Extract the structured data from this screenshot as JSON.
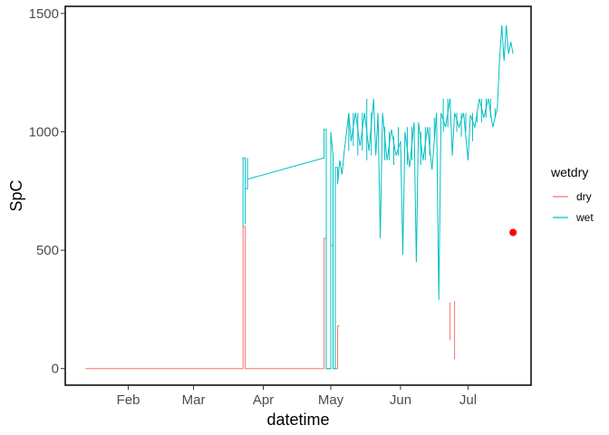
{
  "chart_data": {
    "type": "line",
    "title": "",
    "xlabel": "datetime",
    "ylabel": "SpC",
    "x_ticks": [
      "Feb",
      "Mar",
      "Apr",
      "May",
      "Jun",
      "Jul"
    ],
    "x_tick_dates": [
      "2020-02-01",
      "2020-03-01",
      "2020-04-01",
      "2020-05-01",
      "2020-06-01",
      "2020-07-01"
    ],
    "x_range": [
      "2020-01-04",
      "2020-07-29"
    ],
    "y_ticks": [
      "0",
      "500",
      "1000",
      "1500"
    ],
    "y_tick_values": [
      0,
      500,
      1000,
      1500
    ],
    "ylim": [
      -70,
      1530
    ],
    "grid": false,
    "legend": {
      "title": "wetdry",
      "position": "right",
      "entries": [
        {
          "label": "dry",
          "color": "#F8766D"
        },
        {
          "label": "wet",
          "color": "#00BFC4"
        }
      ]
    },
    "series": [
      {
        "name": "dry",
        "color": "#F8766D",
        "points": [
          [
            "2020-01-13",
            0
          ],
          [
            "2020-02-15",
            0
          ],
          [
            "2020-03-23",
            0
          ],
          [
            "2020-03-23",
            600
          ],
          [
            "2020-03-24",
            600
          ],
          [
            "2020-03-24",
            0
          ],
          [
            "2020-03-25",
            0
          ],
          [
            "2020-04-28",
            0
          ],
          [
            "2020-04-28",
            550
          ],
          [
            "2020-04-29",
            550
          ],
          [
            "2020-04-29",
            0
          ],
          [
            "2020-05-01",
            0
          ],
          [
            "2020-05-01",
            520
          ],
          [
            "2020-05-02",
            520
          ],
          [
            "2020-05-02",
            0
          ],
          [
            "2020-05-04",
            0
          ],
          [
            "2020-05-04",
            180
          ],
          [
            "2020-05-05",
            180
          ]
        ],
        "extra_segments": [
          [
            [
              "2020-06-23",
              120
            ],
            [
              "2020-06-23",
              280
            ]
          ],
          [
            [
              "2020-06-25",
              40
            ],
            [
              "2020-06-25",
              285
            ]
          ]
        ]
      },
      {
        "name": "wet",
        "color": "#00BFC4",
        "points": [
          [
            "2020-03-23",
            600
          ],
          [
            "2020-03-23",
            890
          ],
          [
            "2020-03-24",
            890
          ],
          [
            "2020-03-24",
            610
          ],
          [
            "2020-03-24",
            760
          ],
          [
            "2020-03-25",
            760
          ],
          [
            "2020-03-25",
            890
          ],
          [
            "2020-03-25",
            800
          ],
          [
            "2020-04-28",
            890
          ],
          [
            "2020-04-28",
            1010
          ],
          [
            "2020-04-29",
            1010
          ],
          [
            "2020-04-29",
            0
          ],
          [
            "2020-05-01",
            0
          ],
          [
            "2020-05-01",
            1000
          ],
          [
            "2020-05-02",
            900
          ],
          [
            "2020-05-02",
            0
          ],
          [
            "2020-05-03",
            0
          ],
          [
            "2020-05-03",
            850
          ],
          [
            "2020-05-04",
            850
          ],
          [
            "2020-05-04",
            780
          ],
          [
            "2020-05-05",
            880
          ],
          [
            "2020-05-06",
            820
          ],
          [
            "2020-05-07",
            920
          ],
          [
            "2020-05-08",
            1000
          ],
          [
            "2020-05-09",
            1080
          ],
          [
            "2020-05-10",
            960
          ],
          [
            "2020-05-12",
            1080
          ],
          [
            "2020-05-14",
            940
          ],
          [
            "2020-05-16",
            1080
          ],
          [
            "2020-05-18",
            920
          ],
          [
            "2020-05-20",
            1140
          ],
          [
            "2020-05-21",
            900
          ],
          [
            "2020-05-22",
            1080
          ],
          [
            "2020-05-23",
            550
          ],
          [
            "2020-05-24",
            1080
          ],
          [
            "2020-05-26",
            880
          ],
          [
            "2020-05-28",
            1010
          ],
          [
            "2020-05-30",
            900
          ],
          [
            "2020-06-01",
            960
          ],
          [
            "2020-06-02",
            480
          ],
          [
            "2020-06-03",
            1000
          ],
          [
            "2020-06-05",
            850
          ],
          [
            "2020-06-07",
            1040
          ],
          [
            "2020-06-08",
            450
          ],
          [
            "2020-06-09",
            1040
          ],
          [
            "2020-06-11",
            880
          ],
          [
            "2020-06-13",
            1020
          ],
          [
            "2020-06-15",
            840
          ],
          [
            "2020-06-17",
            1080
          ],
          [
            "2020-06-18",
            290
          ],
          [
            "2020-06-19",
            1080
          ],
          [
            "2020-06-21",
            1020
          ],
          [
            "2020-06-23",
            1140
          ],
          [
            "2020-06-24",
            900
          ],
          [
            "2020-06-25",
            1080
          ],
          [
            "2020-06-27",
            1020
          ],
          [
            "2020-06-29",
            1080
          ],
          [
            "2020-07-01",
            880
          ],
          [
            "2020-07-02",
            1070
          ],
          [
            "2020-07-04",
            1020
          ],
          [
            "2020-07-06",
            1140
          ],
          [
            "2020-07-08",
            1060
          ],
          [
            "2020-07-10",
            1140
          ],
          [
            "2020-07-12",
            1020
          ],
          [
            "2020-07-14",
            1100
          ],
          [
            "2020-07-15",
            1300
          ],
          [
            "2020-07-16",
            1450
          ],
          [
            "2020-07-17",
            1300
          ],
          [
            "2020-07-18",
            1450
          ],
          [
            "2020-07-19",
            1330
          ],
          [
            "2020-07-20",
            1380
          ],
          [
            "2020-07-21",
            1330
          ]
        ],
        "jitter_segments": [
          [
            "2020-05-09",
            920,
            1080
          ],
          [
            "2020-05-11",
            940,
            1080
          ],
          [
            "2020-05-13",
            900,
            1080
          ],
          [
            "2020-05-15",
            920,
            1080
          ],
          [
            "2020-05-17",
            880,
            1140
          ],
          [
            "2020-05-19",
            900,
            1080
          ],
          [
            "2020-05-25",
            880,
            1020
          ],
          [
            "2020-05-27",
            880,
            1000
          ],
          [
            "2020-05-29",
            860,
            980
          ],
          [
            "2020-05-31",
            900,
            1020
          ],
          [
            "2020-06-04",
            860,
            1020
          ],
          [
            "2020-06-06",
            880,
            1020
          ],
          [
            "2020-06-10",
            860,
            1000
          ],
          [
            "2020-06-12",
            880,
            1020
          ],
          [
            "2020-06-14",
            900,
            1020
          ],
          [
            "2020-06-16",
            980,
            1060
          ],
          [
            "2020-06-20",
            1000,
            1140
          ],
          [
            "2020-06-22",
            1020,
            1140
          ],
          [
            "2020-06-26",
            1000,
            1080
          ],
          [
            "2020-06-28",
            980,
            1080
          ],
          [
            "2020-06-30",
            1000,
            1080
          ],
          [
            "2020-07-03",
            960,
            1080
          ],
          [
            "2020-07-05",
            1040,
            1080
          ],
          [
            "2020-07-07",
            1040,
            1140
          ],
          [
            "2020-07-09",
            1060,
            1140
          ],
          [
            "2020-07-11",
            1060,
            1140
          ],
          [
            "2020-07-13",
            1060,
            1100
          ]
        ]
      }
    ],
    "marker": {
      "x": "2020-07-21",
      "y": 575,
      "color": "#FF0000"
    }
  }
}
